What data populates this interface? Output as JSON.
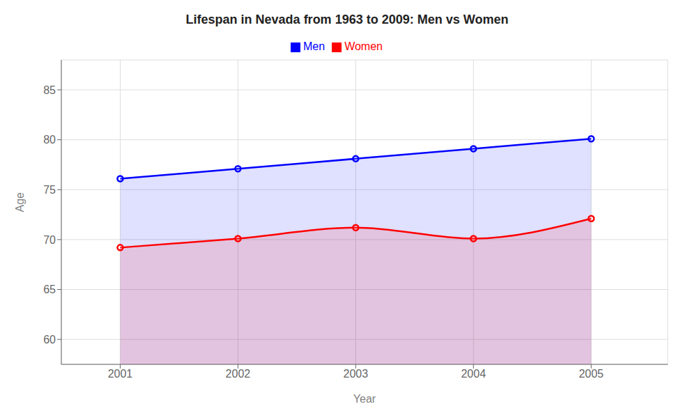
{
  "chart_data": {
    "type": "area",
    "title": "Lifespan in Nevada from 1963 to 2009: Men vs Women",
    "xlabel": "Year",
    "ylabel": "Age",
    "x": [
      2001,
      2002,
      2003,
      2004,
      2005
    ],
    "series": [
      {
        "name": "Men",
        "color": "#0000FF",
        "marker": "circle",
        "values": [
          76.1,
          77.1,
          78.1,
          79.1,
          80.1
        ]
      },
      {
        "name": "Women",
        "color": "#FF0000",
        "marker": "circle",
        "values": [
          69.2,
          70.1,
          71.2,
          70.1,
          72.1
        ]
      }
    ],
    "xlim": [
      2000.5,
      2005.65
    ],
    "xticks": [
      2001,
      2002,
      2003,
      2004,
      2005
    ],
    "ylim": [
      57.5,
      88
    ],
    "yticks": [
      60,
      65,
      70,
      75,
      80,
      85
    ],
    "grid": true,
    "legend": "top"
  }
}
